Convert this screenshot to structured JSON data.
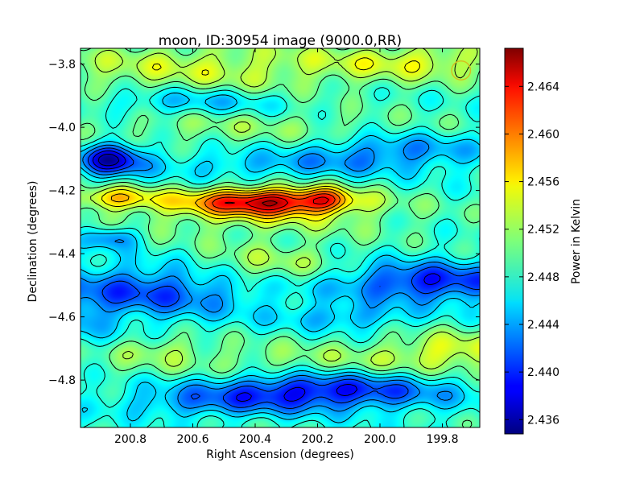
{
  "chart_data": {
    "type": "heatmap",
    "title": "moon, ID:30954 image (9000.0,RR)",
    "xlabel": "Right Ascension (degrees)",
    "ylabel": "Declination (degrees)",
    "xlim": [
      200.96,
      199.68
    ],
    "ylim": [
      -4.95,
      -3.75
    ],
    "x_ticks": [
      200.8,
      200.6,
      200.4,
      200.2,
      200.0,
      199.8
    ],
    "x_tick_labels": [
      "200.8",
      "200.6",
      "200.4",
      "200.2",
      "200.0",
      "199.8"
    ],
    "y_ticks": [
      -3.8,
      -4.0,
      -4.2,
      -4.4,
      -4.6,
      -4.8
    ],
    "y_tick_labels": [
      "−3.8",
      "−4.0",
      "−4.2",
      "−4.4",
      "−4.6",
      "−4.8"
    ],
    "colorbar": {
      "label": "Power in Kelvin",
      "colormap": "jet",
      "range": [
        2.4348,
        2.4672
      ],
      "ticks": [
        2.436,
        2.44,
        2.444,
        2.448,
        2.452,
        2.456,
        2.46,
        2.464
      ],
      "tick_labels": [
        "2.436",
        "2.440",
        "2.444",
        "2.448",
        "2.452",
        "2.456",
        "2.460",
        "2.464"
      ]
    },
    "contours": true,
    "beam_marker": {
      "ra": 199.74,
      "dec": -3.82,
      "radius_deg": 0.055,
      "color": "#d4c020"
    },
    "field": {
      "base": 2.4485,
      "features": [
        {
          "ra": 200.36,
          "dec": -4.235,
          "sra": 0.18,
          "sdec": 0.03,
          "amp": 0.0145
        },
        {
          "ra": 200.17,
          "dec": -4.225,
          "sra": 0.05,
          "sdec": 0.025,
          "amp": 0.005
        },
        {
          "ra": 200.4,
          "dec": -4.28,
          "sra": 0.35,
          "sdec": 0.05,
          "amp": 0.0035
        },
        {
          "ra": 200.85,
          "dec": -4.225,
          "sra": 0.1,
          "sdec": 0.025,
          "amp": 0.007
        },
        {
          "ra": 200.35,
          "dec": -4.44,
          "sra": 0.18,
          "sdec": 0.05,
          "amp": 0.004
        },
        {
          "ra": 200.55,
          "dec": -3.81,
          "sra": 0.45,
          "sdec": 0.06,
          "amp": 0.0045
        },
        {
          "ra": 199.85,
          "dec": -3.79,
          "sra": 0.2,
          "sdec": 0.04,
          "amp": 0.004
        },
        {
          "ra": 200.45,
          "dec": -4.0,
          "sra": 0.4,
          "sdec": 0.04,
          "amp": 0.0025
        },
        {
          "ra": 200.2,
          "dec": -4.76,
          "sra": 0.45,
          "sdec": 0.05,
          "amp": 0.004
        },
        {
          "ra": 199.75,
          "dec": -4.7,
          "sra": 0.15,
          "sdec": 0.04,
          "amp": 0.0045
        },
        {
          "ra": 200.7,
          "dec": -4.7,
          "sra": 0.1,
          "sdec": 0.03,
          "amp": 0.0025
        },
        {
          "ra": 200.86,
          "dec": -4.1,
          "sra": 0.07,
          "sdec": 0.035,
          "amp": -0.011
        },
        {
          "ra": 200.2,
          "dec": -4.83,
          "sra": 0.3,
          "sdec": 0.045,
          "amp": -0.011
        },
        {
          "ra": 199.84,
          "dec": -4.49,
          "sra": 0.22,
          "sdec": 0.045,
          "amp": -0.009
        },
        {
          "ra": 200.75,
          "dec": -4.52,
          "sra": 0.25,
          "sdec": 0.06,
          "amp": -0.0075
        },
        {
          "ra": 200.6,
          "dec": -3.92,
          "sra": 0.2,
          "sdec": 0.03,
          "amp": -0.004
        },
        {
          "ra": 199.95,
          "dec": -4.07,
          "sra": 0.2,
          "sdec": 0.035,
          "amp": -0.005
        },
        {
          "ra": 200.86,
          "dec": -4.35,
          "sra": 0.06,
          "sdec": 0.025,
          "amp": -0.006
        },
        {
          "ra": 200.3,
          "dec": -4.12,
          "sra": 0.35,
          "sdec": 0.03,
          "amp": -0.0035
        },
        {
          "ra": 200.1,
          "dec": -4.6,
          "sra": 0.15,
          "sdec": 0.03,
          "amp": -0.004
        },
        {
          "ra": 200.6,
          "dec": -4.88,
          "sra": 0.2,
          "sdec": 0.03,
          "amp": -0.003
        },
        {
          "ra": 200.95,
          "dec": -4.62,
          "sra": 0.06,
          "sdec": 0.05,
          "amp": -0.003
        }
      ]
    }
  }
}
